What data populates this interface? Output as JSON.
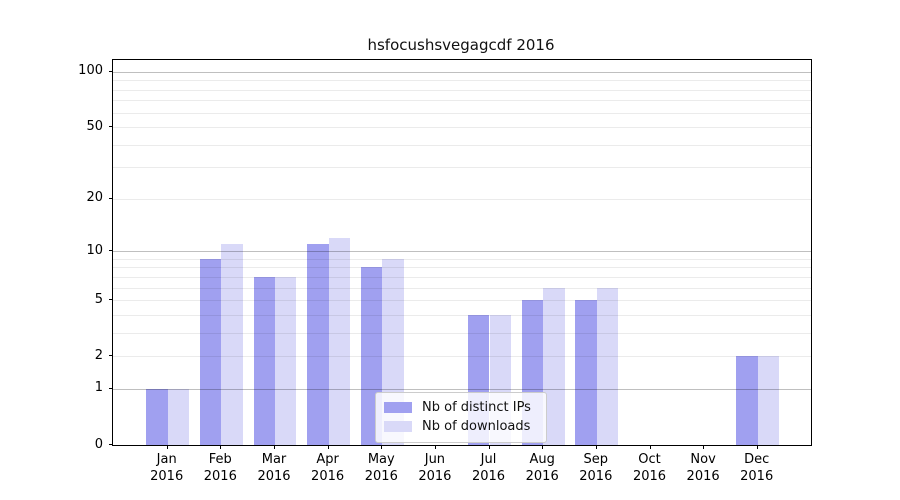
{
  "title": "hsfocushsvegagcdf 2016",
  "legend": {
    "items": [
      {
        "label": "Nb of distinct IPs",
        "color": "#a0a0f0"
      },
      {
        "label": "Nb of downloads",
        "color": "#d9d9f8"
      }
    ]
  },
  "chart_data": {
    "type": "bar",
    "title": "hsfocushsvegagcdf 2016",
    "categories": [
      "Jan",
      "Feb",
      "Mar",
      "Apr",
      "May",
      "Jun",
      "Jul",
      "Aug",
      "Sep",
      "Oct",
      "Nov",
      "Dec"
    ],
    "category_year": "2016",
    "series": [
      {
        "name": "Nb of distinct IPs",
        "color": "#a0a0f0",
        "values": [
          1,
          9,
          7,
          11,
          8,
          0,
          4,
          5,
          5,
          0,
          0,
          2
        ]
      },
      {
        "name": "Nb of downloads",
        "color": "#d9d9f8",
        "values": [
          1,
          11,
          7,
          12,
          9,
          0,
          4,
          6,
          6,
          0,
          0,
          2
        ]
      }
    ],
    "xlabel": "",
    "ylabel": "",
    "y_scale": "log10(1+v)",
    "y_ticks": [
      0,
      1,
      2,
      5,
      10,
      20,
      50,
      100
    ],
    "y_major_gridlines": [
      1,
      10,
      100
    ],
    "y_minor_gridlines": [
      2,
      3,
      4,
      5,
      6,
      7,
      8,
      9,
      20,
      30,
      40,
      50,
      60,
      70,
      80,
      90
    ],
    "ylim": [
      0,
      115
    ],
    "grid": true,
    "legend_position": "inside lower center"
  }
}
